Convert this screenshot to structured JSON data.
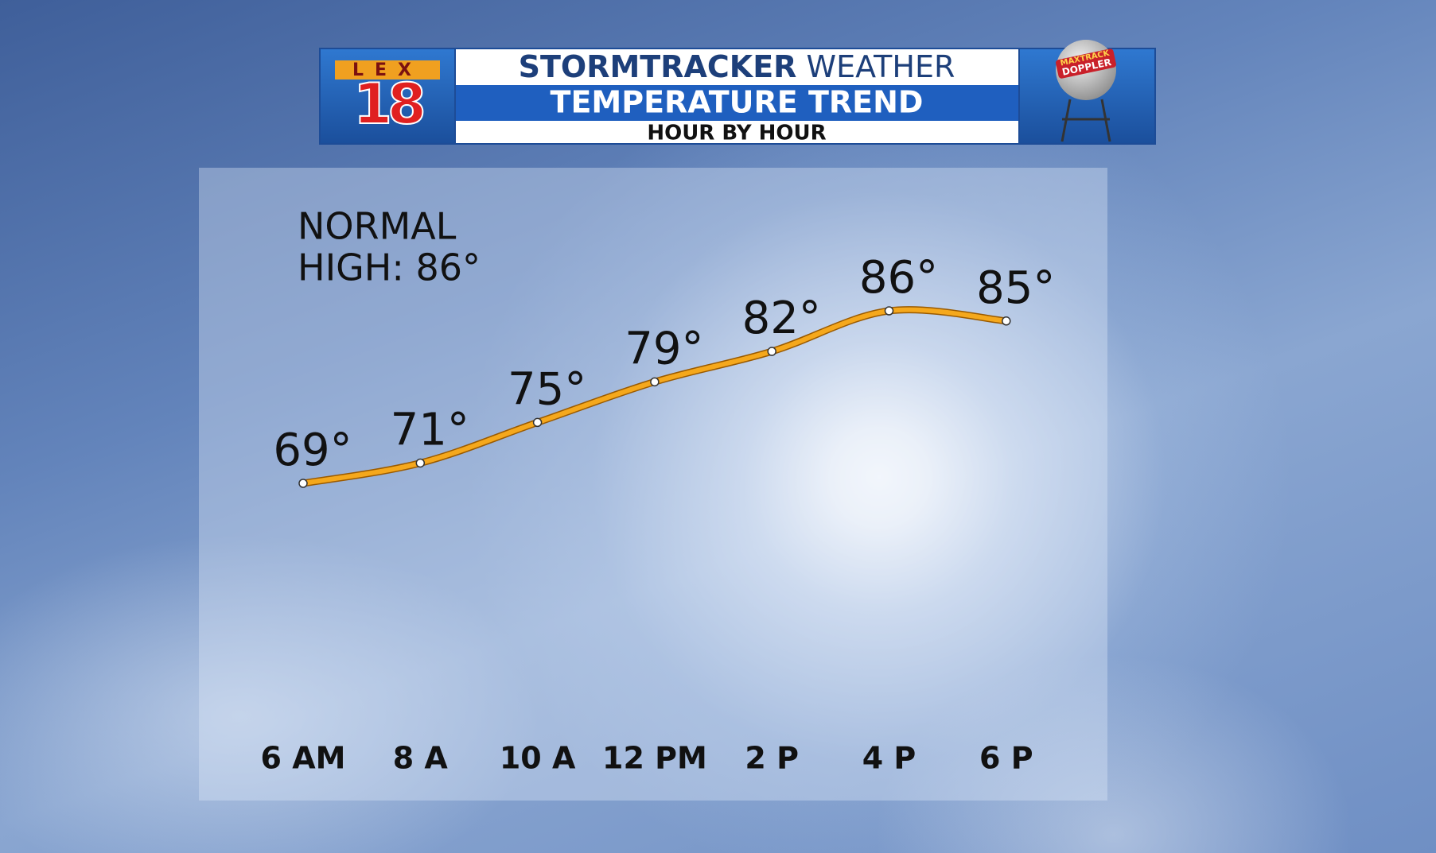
{
  "header": {
    "brand": "STORMTRACKER",
    "brand_suffix": "WEATHER",
    "logo_letters": "LEX",
    "logo_number": "18",
    "badge_top": "MAXTRACK",
    "badge_bottom": "DOPPLER"
  },
  "chart_data": {
    "type": "line",
    "title": "TEMPERATURE TREND",
    "subtitle": "HOUR BY HOUR",
    "annotations": [
      "NORMAL",
      "HIGH: 86°"
    ],
    "categories": [
      "6 AM",
      "8 A",
      "10 A",
      "12 PM",
      "2 P",
      "4 P",
      "6 P"
    ],
    "values": [
      69,
      71,
      75,
      79,
      82,
      86,
      85
    ],
    "value_labels": [
      "69°",
      "71°",
      "75°",
      "79°",
      "82°",
      "86°",
      "85°"
    ],
    "color": "#f5a81c",
    "grid": false
  }
}
